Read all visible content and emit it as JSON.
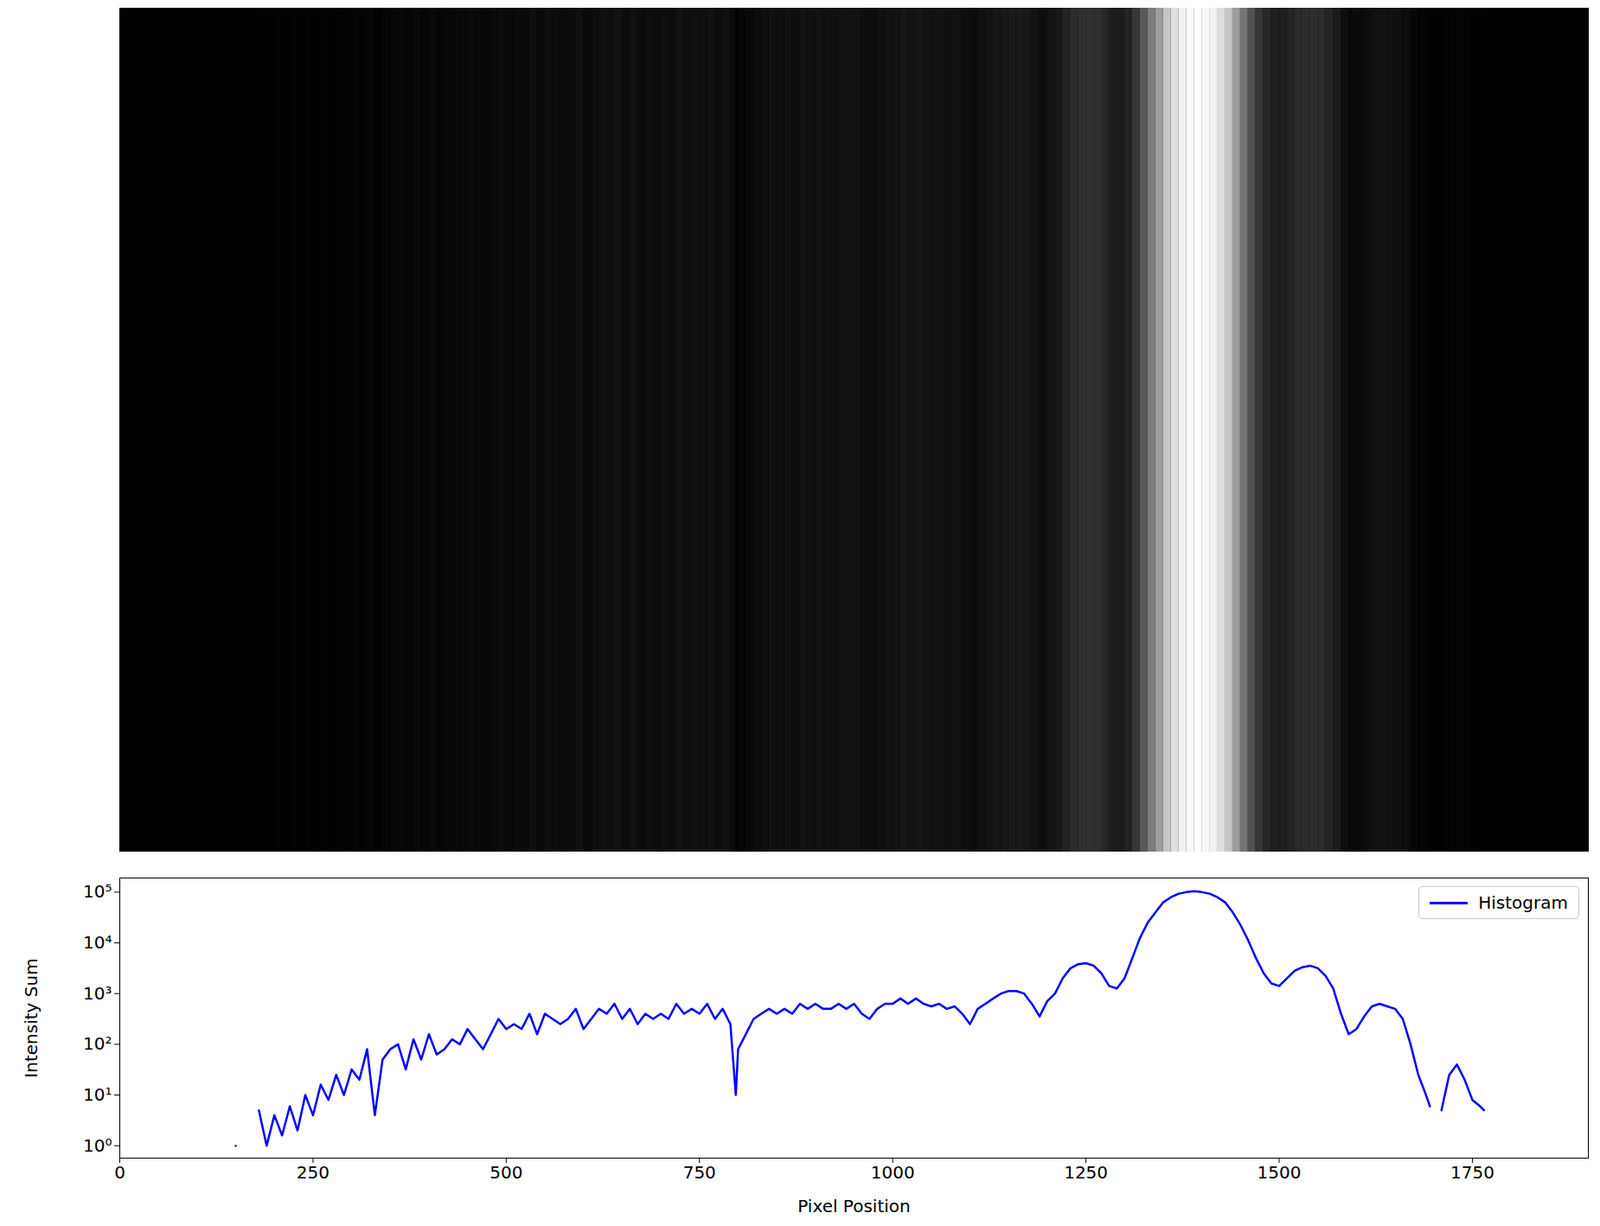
{
  "chart_data": {
    "type": "line",
    "x_label": "Pixel Position",
    "y_label": "Intensity Sum",
    "x": [
      150,
      160,
      180,
      190,
      200,
      210,
      220,
      230,
      240,
      250,
      260,
      270,
      280,
      290,
      300,
      310,
      320,
      330,
      340,
      350,
      360,
      370,
      380,
      390,
      400,
      410,
      420,
      430,
      440,
      450,
      460,
      470,
      480,
      490,
      500,
      510,
      520,
      530,
      540,
      550,
      560,
      570,
      580,
      590,
      600,
      610,
      620,
      630,
      640,
      650,
      660,
      670,
      680,
      690,
      700,
      710,
      720,
      730,
      740,
      750,
      760,
      770,
      780,
      790,
      797,
      800,
      810,
      820,
      830,
      840,
      850,
      860,
      870,
      880,
      890,
      900,
      910,
      920,
      930,
      940,
      950,
      960,
      970,
      980,
      990,
      1000,
      1010,
      1020,
      1030,
      1040,
      1050,
      1060,
      1070,
      1080,
      1090,
      1100,
      1110,
      1120,
      1130,
      1140,
      1150,
      1160,
      1170,
      1180,
      1190,
      1200,
      1210,
      1220,
      1230,
      1240,
      1250,
      1260,
      1270,
      1280,
      1290,
      1300,
      1310,
      1320,
      1330,
      1340,
      1350,
      1360,
      1370,
      1380,
      1390,
      1400,
      1410,
      1420,
      1430,
      1440,
      1450,
      1460,
      1470,
      1480,
      1490,
      1500,
      1510,
      1520,
      1530,
      1540,
      1550,
      1560,
      1570,
      1580,
      1590,
      1600,
      1610,
      1620,
      1630,
      1640,
      1650,
      1660,
      1670,
      1680,
      1690,
      1695,
      1700,
      1710,
      1720,
      1730,
      1740,
      1750,
      1760,
      1765
    ],
    "series": [
      {
        "name": "Histogram",
        "color": "#0000ff",
        "values": [
          1,
          null,
          5,
          1,
          4,
          1.6,
          6,
          2,
          10,
          4,
          16,
          8,
          25,
          10,
          32,
          20,
          80,
          4,
          50,
          80,
          100,
          32,
          126,
          50,
          158,
          63,
          80,
          126,
          100,
          200,
          126,
          80,
          158,
          316,
          200,
          250,
          200,
          400,
          158,
          400,
          316,
          250,
          316,
          500,
          200,
          316,
          500,
          400,
          630,
          316,
          500,
          250,
          400,
          316,
          400,
          316,
          630,
          400,
          500,
          400,
          630,
          316,
          500,
          250,
          10,
          80,
          158,
          316,
          400,
          500,
          400,
          500,
          400,
          630,
          500,
          630,
          500,
          500,
          630,
          500,
          630,
          400,
          316,
          500,
          630,
          630,
          800,
          630,
          800,
          630,
          560,
          630,
          500,
          560,
          400,
          250,
          500,
          630,
          800,
          1000,
          1120,
          1120,
          1000,
          630,
          355,
          710,
          1000,
          2000,
          3160,
          3800,
          3980,
          3550,
          2510,
          1410,
          1260,
          2000,
          5010,
          12600,
          25100,
          39800,
          63100,
          79400,
          93300,
          100000,
          104700,
          100000,
          93300,
          79400,
          63100,
          39800,
          22400,
          11200,
          5010,
          2510,
          1580,
          1410,
          2000,
          2820,
          3310,
          3550,
          3160,
          2240,
          1260,
          400,
          158,
          200,
          355,
          560,
          630,
          560,
          500,
          316,
          100,
          25,
          10,
          6,
          null,
          5,
          25,
          40,
          20,
          8,
          6,
          5
        ]
      }
    ],
    "xlim": [
      0,
      1900
    ],
    "ylim": [
      0.57,
      190000
    ],
    "xticks": [
      0,
      250,
      500,
      750,
      1000,
      1250,
      1500,
      1750
    ],
    "yticks": [
      {
        "value": 1,
        "label": "10⁰"
      },
      {
        "value": 10,
        "label": "10¹"
      },
      {
        "value": 100,
        "label": "10²"
      },
      {
        "value": 1000,
        "label": "10³"
      },
      {
        "value": 10000,
        "label": "10⁴"
      },
      {
        "value": 100000,
        "label": "10⁵"
      }
    ],
    "log": "y",
    "legend": "upper right"
  }
}
